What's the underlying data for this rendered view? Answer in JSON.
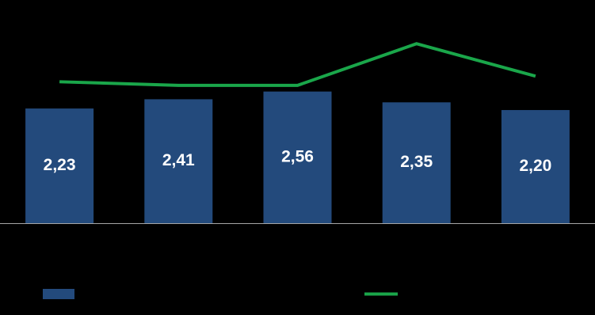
{
  "chart_data": {
    "type": "bar",
    "categories": [
      null,
      null,
      null,
      null,
      null
    ],
    "series": [
      {
        "type": "bar",
        "color": "#234a7c",
        "values": [
          2.23,
          2.41,
          2.56,
          2.35,
          2.2
        ],
        "value_labels": [
          "2,23",
          "2,41",
          "2,56",
          "2,35",
          "2,20"
        ]
      },
      {
        "type": "line",
        "color": "#1aa64a",
        "values": [
          2.75,
          2.68,
          2.68,
          3.49,
          2.86
        ]
      }
    ],
    "ylim": [
      0,
      4.34
    ]
  }
}
